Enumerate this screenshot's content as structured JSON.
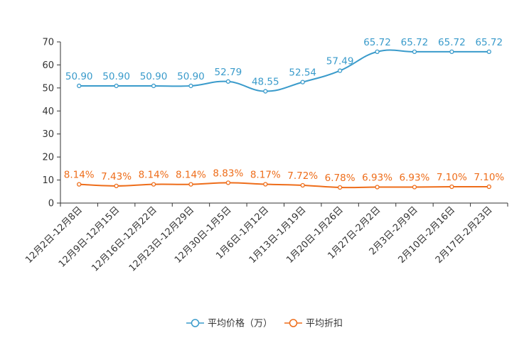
{
  "chart_data": {
    "type": "line",
    "title": "",
    "xlabel": "",
    "ylabel": "",
    "ylim": [
      0,
      70
    ],
    "yticks": [
      0,
      10,
      20,
      30,
      40,
      50,
      60,
      70
    ],
    "grid": false,
    "legend_position": "bottom-center",
    "categories": [
      "12月2日-12月8日",
      "12月9日-12月15日",
      "12月16日-12月22日",
      "12月23日-12月29日",
      "12月30日-1月5日",
      "1月6日-1月12日",
      "1月13日-1月19日",
      "1月20日-1月26日",
      "1月27日-2月2日",
      "2月3日-2月9日",
      "2月10日-2月16日",
      "2月17日-2月23日"
    ],
    "series": [
      {
        "name": "平均价格（万）",
        "color": "#3a9bcb",
        "values": [
          50.9,
          50.9,
          50.9,
          50.9,
          52.79,
          48.55,
          52.54,
          57.49,
          65.72,
          65.72,
          65.72,
          65.72
        ],
        "labels": [
          "50.90",
          "50.90",
          "50.90",
          "50.90",
          "52.79",
          "48.55",
          "52.54",
          "57.49",
          "65.72",
          "65.72",
          "65.72",
          "65.72"
        ]
      },
      {
        "name": "平均折扣",
        "color": "#ee6d1a",
        "values": [
          8.14,
          7.43,
          8.14,
          8.14,
          8.83,
          8.17,
          7.72,
          6.78,
          6.93,
          6.93,
          7.1,
          7.1
        ],
        "labels": [
          "8.14%",
          "7.43%",
          "8.14%",
          "8.14%",
          "8.83%",
          "8.17%",
          "7.72%",
          "6.78%",
          "6.93%",
          "6.93%",
          "7.10%",
          "7.10%"
        ]
      }
    ]
  }
}
